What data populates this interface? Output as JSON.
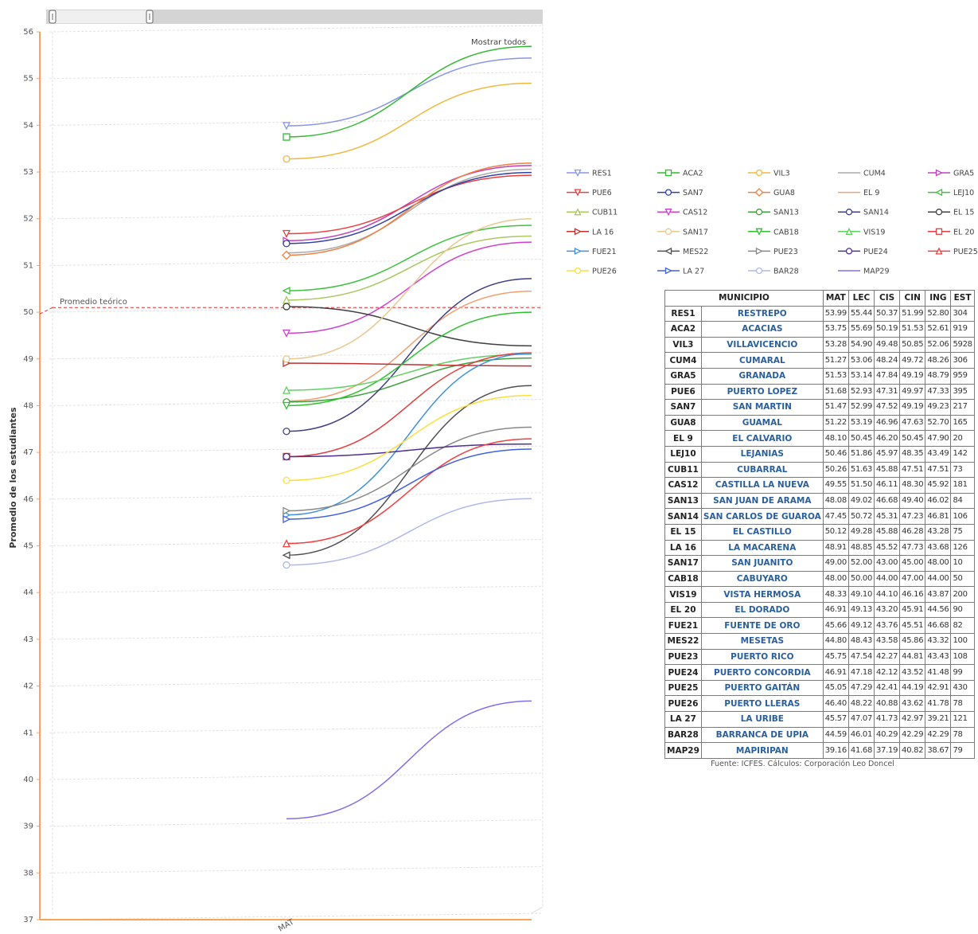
{
  "chart_data": {
    "type": "line",
    "y_axis_label": "Promedio de los estudiantes",
    "x_tick_label": "MAT",
    "ylim": [
      37,
      56
    ],
    "y_ticks": [
      37,
      38,
      39,
      40,
      41,
      42,
      43,
      44,
      45,
      46,
      47,
      48,
      49,
      50,
      51,
      52,
      53,
      54,
      55,
      56
    ],
    "show_all_label": "Mostrar todos",
    "reference_line": {
      "label": "Promedio teórico",
      "value": 50.1
    },
    "series": [
      {
        "name": "RES1",
        "color": "#8896e8",
        "marker": "tri-down",
        "start": 53.99,
        "end": 55.44
      },
      {
        "name": "ACA2",
        "color": "#33b933",
        "marker": "square",
        "start": 53.75,
        "end": 55.69
      },
      {
        "name": "VIL3",
        "color": "#f0b840",
        "marker": "circle",
        "start": 53.28,
        "end": 54.9
      },
      {
        "name": "CUM4",
        "color": "#aaaaaa",
        "marker": "none",
        "start": 51.27,
        "end": 53.06
      },
      {
        "name": "GRA5",
        "color": "#c040c0",
        "marker": "tri-right",
        "start": 51.53,
        "end": 53.14
      },
      {
        "name": "PUE6",
        "color": "#e84040",
        "marker": "tri-down",
        "start": 51.68,
        "end": 52.93
      },
      {
        "name": "SAN7",
        "color": "#3040a0",
        "marker": "circle",
        "start": 51.47,
        "end": 52.99
      },
      {
        "name": "GUA8",
        "color": "#f08040",
        "marker": "diamond",
        "start": 51.22,
        "end": 53.19
      },
      {
        "name": "EL 9",
        "color": "#f0a070",
        "marker": "none",
        "start": 48.1,
        "end": 50.45
      },
      {
        "name": "LEJ10",
        "color": "#40c040",
        "marker": "tri-left",
        "start": 50.46,
        "end": 51.86
      },
      {
        "name": "CUB11",
        "color": "#a8c860",
        "marker": "tri-up",
        "start": 50.26,
        "end": 51.63
      },
      {
        "name": "CAS12",
        "color": "#d040d0",
        "marker": "tri-down",
        "start": 49.55,
        "end": 51.5
      },
      {
        "name": "SAN13",
        "color": "#40a040",
        "marker": "circle",
        "start": 48.08,
        "end": 49.02
      },
      {
        "name": "SAN14",
        "color": "#404080",
        "marker": "circle",
        "start": 47.45,
        "end": 50.72
      },
      {
        "name": "EL 15",
        "color": "#404040",
        "marker": "circle",
        "start": 50.12,
        "end": 49.28
      },
      {
        "name": "LA 16",
        "color": "#c03030",
        "marker": "tri-right",
        "start": 48.91,
        "end": 48.85
      },
      {
        "name": "SAN17",
        "color": "#e8c890",
        "marker": "circle",
        "start": 49.0,
        "end": 52.0
      },
      {
        "name": "CAB18",
        "color": "#30c030",
        "marker": "tri-down",
        "start": 48.0,
        "end": 50.0
      },
      {
        "name": "VIS19",
        "color": "#60d060",
        "marker": "tri-up",
        "start": 48.33,
        "end": 49.1
      },
      {
        "name": "EL 20",
        "color": "#e04040",
        "marker": "square",
        "start": 46.91,
        "end": 49.13
      },
      {
        "name": "FUE21",
        "color": "#4090e0",
        "marker": "tri-right",
        "start": 45.66,
        "end": 49.12
      },
      {
        "name": "MES22",
        "color": "#505050",
        "marker": "tri-left",
        "start": 44.8,
        "end": 48.43
      },
      {
        "name": "PUE23",
        "color": "#888888",
        "marker": "tri-right",
        "start": 45.75,
        "end": 47.54
      },
      {
        "name": "PUE24",
        "color": "#503090",
        "marker": "circle",
        "start": 46.91,
        "end": 47.18
      },
      {
        "name": "PUE25",
        "color": "#f04040",
        "marker": "tri-up",
        "start": 45.05,
        "end": 47.29
      },
      {
        "name": "PUE26",
        "color": "#f8e040",
        "marker": "circle",
        "start": 46.4,
        "end": 48.22
      },
      {
        "name": "LA 27",
        "color": "#4060e0",
        "marker": "tri-right",
        "start": 45.57,
        "end": 47.07
      },
      {
        "name": "BAR28",
        "color": "#b0b8e8",
        "marker": "circle",
        "start": 44.59,
        "end": 46.01
      },
      {
        "name": "MAP29",
        "color": "#8070e8",
        "marker": "none",
        "start": 39.16,
        "end": 41.68
      }
    ]
  },
  "table": {
    "headers": [
      "MUNICIPIO",
      "MAT",
      "LEC",
      "CIS",
      "CIN",
      "ING",
      "EST"
    ],
    "rows": [
      [
        "RES1",
        "RESTREPO",
        "53.99",
        "55.44",
        "50.37",
        "51.99",
        "52.80",
        "304"
      ],
      [
        "ACA2",
        "ACACIAS",
        "53.75",
        "55.69",
        "50.19",
        "51.53",
        "52.61",
        "919"
      ],
      [
        "VIL3",
        "VILLAVICENCIO",
        "53.28",
        "54.90",
        "49.48",
        "50.85",
        "52.06",
        "5928"
      ],
      [
        "CUM4",
        "CUMARAL",
        "51.27",
        "53.06",
        "48.24",
        "49.72",
        "48.26",
        "306"
      ],
      [
        "GRA5",
        "GRANADA",
        "51.53",
        "53.14",
        "47.84",
        "49.19",
        "48.79",
        "959"
      ],
      [
        "PUE6",
        "PUERTO LOPEZ",
        "51.68",
        "52.93",
        "47.31",
        "49.97",
        "47.33",
        "395"
      ],
      [
        "SAN7",
        "SAN MARTIN",
        "51.47",
        "52.99",
        "47.52",
        "49.19",
        "49.23",
        "217"
      ],
      [
        "GUA8",
        "GUAMAL",
        "51.22",
        "53.19",
        "46.96",
        "47.63",
        "52.70",
        "165"
      ],
      [
        "EL 9",
        "EL CALVARIO",
        "48.10",
        "50.45",
        "46.20",
        "50.45",
        "47.90",
        "20"
      ],
      [
        "LEJ10",
        "LEJANIAS",
        "50.46",
        "51.86",
        "45.97",
        "48.35",
        "43.49",
        "142"
      ],
      [
        "CUB11",
        "CUBARRAL",
        "50.26",
        "51.63",
        "45.88",
        "47.51",
        "47.51",
        "73"
      ],
      [
        "CAS12",
        "CASTILLA LA NUEVA",
        "49.55",
        "51.50",
        "46.11",
        "48.30",
        "45.92",
        "181"
      ],
      [
        "SAN13",
        "SAN JUAN DE ARAMA",
        "48.08",
        "49.02",
        "46.68",
        "49.40",
        "46.02",
        "84"
      ],
      [
        "SAN14",
        "SAN CARLOS DE GUAROA",
        "47.45",
        "50.72",
        "45.31",
        "47.23",
        "46.81",
        "106"
      ],
      [
        "EL 15",
        "EL CASTILLO",
        "50.12",
        "49.28",
        "45.88",
        "46.28",
        "43.28",
        "75"
      ],
      [
        "LA 16",
        "LA MACARENA",
        "48.91",
        "48.85",
        "45.52",
        "47.73",
        "43.68",
        "126"
      ],
      [
        "SAN17",
        "SAN JUANITO",
        "49.00",
        "52.00",
        "43.00",
        "45.00",
        "48.00",
        "10"
      ],
      [
        "CAB18",
        "CABUYARO",
        "48.00",
        "50.00",
        "44.00",
        "47.00",
        "44.00",
        "50"
      ],
      [
        "VIS19",
        "VISTA HERMOSA",
        "48.33",
        "49.10",
        "44.10",
        "46.16",
        "43.87",
        "200"
      ],
      [
        "EL 20",
        "EL DORADO",
        "46.91",
        "49.13",
        "43.20",
        "45.91",
        "44.56",
        "90"
      ],
      [
        "FUE21",
        "FUENTE DE ORO",
        "45.66",
        "49.12",
        "43.76",
        "45.51",
        "46.68",
        "82"
      ],
      [
        "MES22",
        "MESETAS",
        "44.80",
        "48.43",
        "43.58",
        "45.86",
        "43.32",
        "100"
      ],
      [
        "PUE23",
        "PUERTO RICO",
        "45.75",
        "47.54",
        "42.27",
        "44.81",
        "43.43",
        "108"
      ],
      [
        "PUE24",
        "PUERTO CONCORDIA",
        "46.91",
        "47.18",
        "42.12",
        "43.52",
        "41.48",
        "99"
      ],
      [
        "PUE25",
        "PUERTO GAITÁN",
        "45.05",
        "47.29",
        "42.41",
        "44.19",
        "42.91",
        "430"
      ],
      [
        "PUE26",
        "PUERTO LLERAS",
        "46.40",
        "48.22",
        "40.88",
        "43.62",
        "41.78",
        "78"
      ],
      [
        "LA 27",
        "LA URIBE",
        "45.57",
        "47.07",
        "41.73",
        "42.97",
        "39.21",
        "121"
      ],
      [
        "BAR28",
        "BARRANCA DE UPIA",
        "44.59",
        "46.01",
        "40.29",
        "42.29",
        "42.29",
        "78"
      ],
      [
        "MAP29",
        "MAPIRIPAN",
        "39.16",
        "41.68",
        "37.19",
        "40.82",
        "38.67",
        "79"
      ]
    ]
  },
  "source_note": "Fuente: ICFES. Cálculos: Corporación Leo Doncel"
}
